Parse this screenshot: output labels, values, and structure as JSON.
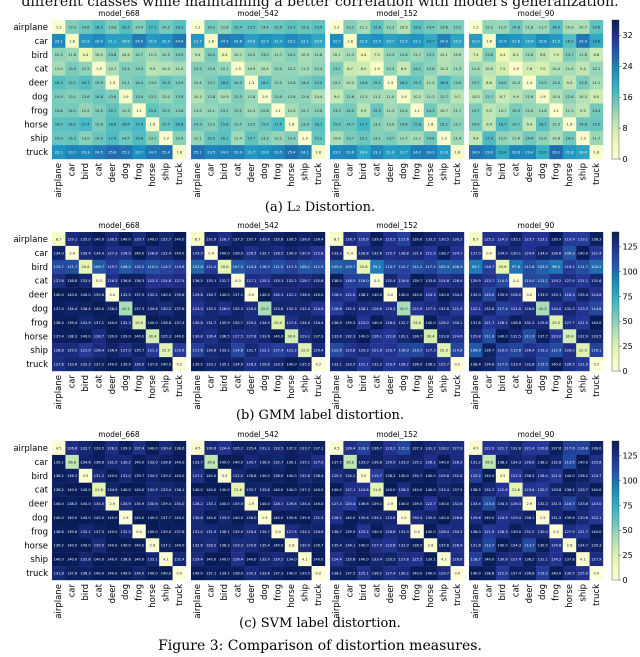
{
  "top_caption": "different classes while maintaining a better correlation with model's generalization.",
  "figure_caption": "Figure 3: Comparison of distortion measures.",
  "classes": [
    "airplane",
    "car",
    "bird",
    "cat",
    "deer",
    "dog",
    "frog",
    "horse",
    "ship",
    "truck"
  ],
  "colormap": [
    "#ffffd9",
    "#edf8b1",
    "#c7e9b4",
    "#7fcdbb",
    "#41b6c4",
    "#1d91c0",
    "#225ea8",
    "#253494",
    "#081d58"
  ],
  "chart_data": [
    {
      "type": "heatmap",
      "panel_caption": "(a) L₂ Distortion.",
      "models": [
        "model_668",
        "model_542",
        "model_152",
        "model_90"
      ],
      "colorbar_ticks": [
        0,
        8,
        16,
        24,
        32
      ],
      "vmin": 0,
      "vmax": 36,
      "diag": [
        1.2,
        1.8,
        4.4,
        1.9,
        1.3,
        1.9,
        1.1,
        1.6,
        1.3,
        1.8
      ],
      "row_base": [
        15.1,
        22.8,
        12.5,
        12.0,
        14.9,
        12.8,
        13.8,
        15.9,
        14.9,
        24.2
      ]
    },
    {
      "type": "heatmap",
      "panel_caption": "(b) GMM label distortion.",
      "models": [
        "model_668",
        "model_542",
        "model_152",
        "model_90"
      ],
      "colorbar_ticks": [
        0,
        25,
        50,
        75,
        100,
        125
      ],
      "vmin": 0,
      "vmax": 140,
      "diag": [
        8.7,
        0.4,
        20.6,
        0.0,
        0.0,
        42.5,
        25.0,
        30.4,
        22.9,
        0.2
      ],
      "row_base": [
        136.3,
        133.8,
        114.5,
        131.4,
        139.5,
        133.2,
        138.3,
        137.0,
        128.4,
        135.9
      ]
    },
    {
      "type": "heatmap",
      "panel_caption": "(c) SVM label distortion.",
      "models": [
        "model_668",
        "model_542",
        "model_152",
        "model_90"
      ],
      "colorbar_ticks": [
        0,
        25,
        50,
        75,
        100,
        125
      ],
      "vmin": 0,
      "vmax": 140,
      "diag": [
        4.5,
        36.8,
        3.5,
        21.6,
        2.9,
        1.5,
        0.0,
        2.8,
        4.1,
        0.0
      ],
      "row_base": [
        134.0,
        138.0,
        139.0,
        140.0,
        137.9,
        140.7,
        138.5,
        138.8,
        140.2,
        139.9
      ]
    }
  ]
}
